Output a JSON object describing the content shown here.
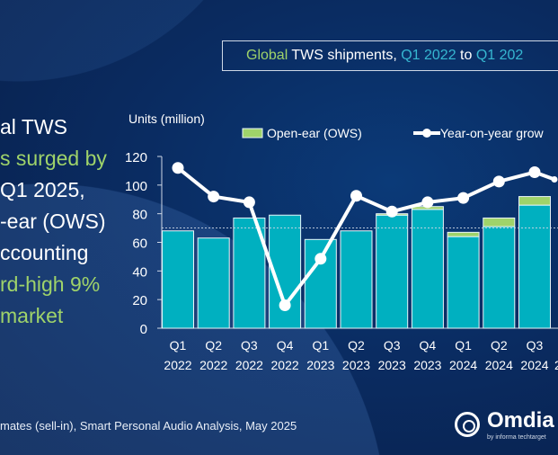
{
  "title": {
    "part1": "Global",
    "part2": " TWS shipments, ",
    "part3": "Q1 2022",
    "part4": " to ",
    "part5": "Q1 202"
  },
  "left_text": [
    {
      "text": "al TWS",
      "green": false
    },
    {
      "text": "s surged by",
      "green": true
    },
    {
      "text": "Q1 2025,",
      "green": false
    },
    {
      "text": "-ear (OWS)",
      "green": false
    },
    {
      "text": "ccounting",
      "green": false
    },
    {
      "text": "rd-high 9%",
      "green": true
    },
    {
      "text": "market",
      "green": true
    }
  ],
  "source": "mates (sell-in), Smart Personal Audio Analysis, May 2025",
  "logo": {
    "word": "Omdia",
    "sub": "by informa techtarget"
  },
  "colors": {
    "tws": "#00b0c0",
    "ows": "#9fd36a",
    "line": "#ffffff",
    "accent_green": "#9fd36a",
    "accent_cyan": "#36b7d1"
  },
  "chart_data": {
    "type": "bar",
    "ylabel": "Units (million)",
    "ylim": [
      0,
      120
    ],
    "yticks": [
      0,
      20,
      40,
      60,
      80,
      100,
      120
    ],
    "categories": [
      [
        "Q1",
        "2022"
      ],
      [
        "Q2",
        "2022"
      ],
      [
        "Q3",
        "2022"
      ],
      [
        "Q4",
        "2022"
      ],
      [
        "Q1",
        "2023"
      ],
      [
        "Q2",
        "2023"
      ],
      [
        "Q3",
        "2023"
      ],
      [
        "Q4",
        "2023"
      ],
      [
        "Q1",
        "2024"
      ],
      [
        "Q2",
        "2024"
      ],
      [
        "Q3",
        "2024"
      ],
      [
        "",
        "2"
      ]
    ],
    "series": [
      {
        "name": "",
        "values": [
          68,
          63,
          77,
          79,
          62,
          68,
          79,
          83,
          64,
          71,
          86,
          null
        ]
      },
      {
        "name": "Open-ear (OWS)",
        "values": [
          0,
          0,
          0,
          0,
          0,
          0,
          1,
          2,
          3,
          6,
          6,
          null
        ]
      }
    ],
    "line": {
      "name": "Year-on-year grow",
      "values": [
        112,
        92,
        88,
        16,
        48.5,
        92.5,
        81.5,
        88,
        91,
        102.5,
        109,
        104
      ]
    },
    "reference_line": 70,
    "stacked": true,
    "legend": "top",
    "grid": false
  }
}
